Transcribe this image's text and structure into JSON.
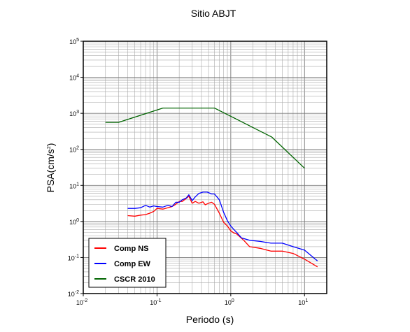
{
  "chart_data": {
    "type": "line",
    "title": "Sitio ABJT",
    "xlabel": "Periodo (s)",
    "ylabel": "PSA(cm/s²)",
    "x_scale": "log",
    "y_scale": "log",
    "xlim": [
      0.01,
      20
    ],
    "ylim": [
      0.01,
      100000
    ],
    "grid": true,
    "legend_position": "bottom-left",
    "x_ticks": [
      {
        "base": "10",
        "exp": "-2",
        "value": 0.01
      },
      {
        "base": "10",
        "exp": "-1",
        "value": 0.1
      },
      {
        "base": "10",
        "exp": "0",
        "value": 1
      },
      {
        "base": "10",
        "exp": "1",
        "value": 10
      }
    ],
    "y_ticks": [
      {
        "base": "10",
        "exp": "-2",
        "value": 0.01
      },
      {
        "base": "10",
        "exp": "-1",
        "value": 0.1
      },
      {
        "base": "10",
        "exp": "0",
        "value": 1
      },
      {
        "base": "10",
        "exp": "1",
        "value": 10
      },
      {
        "base": "10",
        "exp": "2",
        "value": 100
      },
      {
        "base": "10",
        "exp": "3",
        "value": 1000
      },
      {
        "base": "10",
        "exp": "4",
        "value": 10000
      },
      {
        "base": "10",
        "exp": "5",
        "value": 100000
      }
    ],
    "series": [
      {
        "name": "Comp NS",
        "color": "#ff0000",
        "points": [
          [
            0.04,
            1.45
          ],
          [
            0.05,
            1.4
          ],
          [
            0.06,
            1.5
          ],
          [
            0.07,
            1.55
          ],
          [
            0.08,
            1.7
          ],
          [
            0.09,
            1.9
          ],
          [
            0.1,
            2.3
          ],
          [
            0.12,
            2.2
          ],
          [
            0.14,
            2.4
          ],
          [
            0.16,
            2.6
          ],
          [
            0.18,
            3.0
          ],
          [
            0.2,
            3.6
          ],
          [
            0.22,
            3.6
          ],
          [
            0.25,
            4.4
          ],
          [
            0.27,
            5.0
          ],
          [
            0.3,
            3.2
          ],
          [
            0.33,
            3.6
          ],
          [
            0.37,
            3.2
          ],
          [
            0.42,
            3.5
          ],
          [
            0.45,
            2.9
          ],
          [
            0.5,
            3.2
          ],
          [
            0.55,
            3.4
          ],
          [
            0.6,
            3.0
          ],
          [
            0.7,
            1.7
          ],
          [
            0.8,
            0.95
          ],
          [
            0.9,
            0.75
          ],
          [
            1.0,
            0.55
          ],
          [
            1.1,
            0.48
          ],
          [
            1.2,
            0.45
          ],
          [
            1.5,
            0.3
          ],
          [
            1.8,
            0.2
          ],
          [
            2.5,
            0.18
          ],
          [
            3.5,
            0.15
          ],
          [
            5,
            0.15
          ],
          [
            7,
            0.13
          ],
          [
            10,
            0.09
          ],
          [
            15,
            0.055
          ]
        ]
      },
      {
        "name": "Comp EW",
        "color": "#0000ff",
        "points": [
          [
            0.04,
            2.3
          ],
          [
            0.05,
            2.3
          ],
          [
            0.06,
            2.4
          ],
          [
            0.07,
            2.8
          ],
          [
            0.08,
            2.5
          ],
          [
            0.09,
            2.7
          ],
          [
            0.1,
            2.6
          ],
          [
            0.12,
            2.5
          ],
          [
            0.14,
            2.8
          ],
          [
            0.16,
            2.6
          ],
          [
            0.18,
            3.4
          ],
          [
            0.2,
            3.4
          ],
          [
            0.22,
            4.0
          ],
          [
            0.25,
            4.5
          ],
          [
            0.27,
            5.5
          ],
          [
            0.3,
            3.8
          ],
          [
            0.33,
            4.8
          ],
          [
            0.37,
            6.0
          ],
          [
            0.42,
            6.5
          ],
          [
            0.48,
            6.5
          ],
          [
            0.55,
            5.8
          ],
          [
            0.6,
            5.8
          ],
          [
            0.7,
            4.0
          ],
          [
            0.8,
            1.8
          ],
          [
            0.9,
            1.05
          ],
          [
            1.0,
            0.75
          ],
          [
            1.1,
            0.6
          ],
          [
            1.2,
            0.5
          ],
          [
            1.4,
            0.35
          ],
          [
            1.8,
            0.3
          ],
          [
            2.5,
            0.28
          ],
          [
            3.5,
            0.25
          ],
          [
            5,
            0.25
          ],
          [
            7,
            0.2
          ],
          [
            10,
            0.16
          ],
          [
            15,
            0.08
          ]
        ]
      },
      {
        "name": "CSCR 2010",
        "color": "#006400",
        "points": [
          [
            0.02,
            560
          ],
          [
            0.03,
            560
          ],
          [
            0.12,
            1400
          ],
          [
            0.6,
            1400
          ],
          [
            3.6,
            220
          ],
          [
            10,
            30
          ]
        ]
      }
    ]
  }
}
